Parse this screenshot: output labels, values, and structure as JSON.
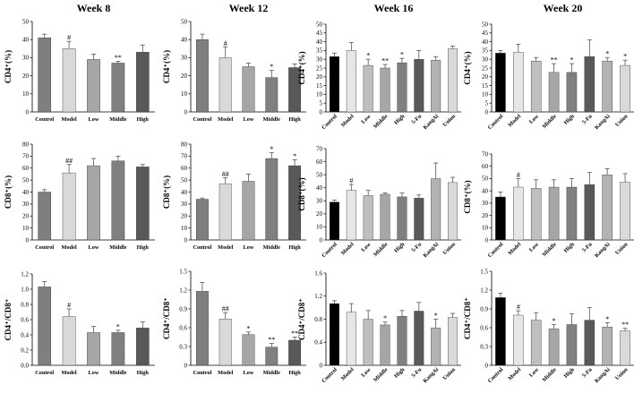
{
  "chart_data": [
    {
      "id": "w8-cd4",
      "type": "bar",
      "title": "Week 8",
      "ylabel": "CD4⁺(%)",
      "ylim": [
        0,
        50
      ],
      "yticks": [
        0,
        10,
        20,
        30,
        40,
        50
      ],
      "tick_labels": [
        "0",
        "10",
        "20",
        "30",
        "40",
        "50"
      ],
      "categories": [
        "Control",
        "Model",
        "Low",
        "Middle",
        "High"
      ],
      "values": [
        41,
        35,
        29,
        27,
        33
      ],
      "errors": [
        2,
        4,
        3,
        1,
        4
      ],
      "sig": [
        "",
        "#",
        "",
        "**",
        ""
      ],
      "colors": [
        "#7f7f7f",
        "#d9d9d9",
        "#a6a6a6",
        "#808080",
        "#595959"
      ]
    },
    {
      "id": "w12-cd4",
      "type": "bar",
      "title": "Week 12",
      "ylabel": "CD4⁺(%)",
      "ylim": [
        0,
        50
      ],
      "yticks": [
        0,
        10,
        20,
        30,
        40,
        50
      ],
      "tick_labels": [
        "0",
        "10",
        "20",
        "30",
        "40",
        "50"
      ],
      "categories": [
        "Control",
        "Model",
        "Low",
        "Middle",
        "High"
      ],
      "values": [
        40,
        30,
        25,
        19,
        24.5
      ],
      "errors": [
        3,
        6,
        2,
        4,
        2
      ],
      "sig": [
        "",
        "#",
        "",
        "*",
        ""
      ],
      "colors": [
        "#7f7f7f",
        "#d9d9d9",
        "#a6a6a6",
        "#808080",
        "#595959"
      ]
    },
    {
      "id": "w16-cd4",
      "type": "bar",
      "title": "Week 16",
      "ylabel": "CD4⁺(%)",
      "ylim": [
        0,
        50
      ],
      "yticks": [
        0,
        5,
        10,
        15,
        20,
        25,
        30,
        35,
        40,
        45,
        50
      ],
      "tick_labels": [
        "0",
        "5",
        "10",
        "15",
        "20",
        "25",
        "30",
        "35",
        "40",
        "45",
        "50"
      ],
      "categories": [
        "Control",
        "Model",
        "Low",
        "Middle",
        "High",
        "5-Fu",
        "KangAi",
        "Union"
      ],
      "values": [
        31.5,
        35,
        26.5,
        25,
        28,
        30,
        29.5,
        36
      ],
      "errors": [
        2,
        4.5,
        3.5,
        2,
        2.5,
        5,
        2,
        1.5
      ],
      "sig": [
        "",
        "",
        "*",
        "**",
        "*",
        "",
        "",
        ""
      ],
      "colors": [
        "#000000",
        "#e6e6e6",
        "#bfbfbf",
        "#a6a6a6",
        "#808080",
        "#595959",
        "#b3b3b3",
        "#d9d9d9"
      ]
    },
    {
      "id": "w20-cd4",
      "type": "bar",
      "title": "Week 20",
      "ylabel": "CD4⁺(%)",
      "ylim": [
        0,
        50
      ],
      "yticks": [
        0,
        5,
        10,
        15,
        20,
        25,
        30,
        35,
        40,
        45,
        50
      ],
      "tick_labels": [
        "0",
        "5",
        "10",
        "15",
        "20",
        "25",
        "30",
        "35",
        "40",
        "45",
        "50"
      ],
      "categories": [
        "Control",
        "Model",
        "Low",
        "Middle",
        "High",
        "5-Fu",
        "KangAi",
        "Union"
      ],
      "values": [
        33.5,
        34,
        29,
        22.5,
        22.5,
        31.5,
        29,
        26.5
      ],
      "errors": [
        1.5,
        4.5,
        2,
        5,
        5,
        9.5,
        2,
        3
      ],
      "sig": [
        "",
        "",
        "",
        "**",
        "*",
        "",
        "*",
        "*"
      ],
      "colors": [
        "#000000",
        "#e6e6e6",
        "#bfbfbf",
        "#a6a6a6",
        "#808080",
        "#595959",
        "#b3b3b3",
        "#d9d9d9"
      ]
    },
    {
      "id": "w8-cd8",
      "type": "bar",
      "title": "",
      "ylabel": "CD8⁺(%)",
      "ylim": [
        0,
        80
      ],
      "yticks": [
        0,
        10,
        20,
        30,
        40,
        50,
        60,
        70,
        80
      ],
      "tick_labels": [
        "0",
        "10",
        "20",
        "30",
        "40",
        "50",
        "60",
        "70",
        "80"
      ],
      "categories": [
        "Control",
        "Model",
        "Low",
        "Middle",
        "High"
      ],
      "values": [
        40,
        56,
        62,
        66,
        61
      ],
      "errors": [
        2,
        7,
        6,
        4,
        2
      ],
      "sig": [
        "",
        "##",
        "",
        "",
        ""
      ],
      "colors": [
        "#7f7f7f",
        "#d9d9d9",
        "#a6a6a6",
        "#808080",
        "#595959"
      ]
    },
    {
      "id": "w12-cd8",
      "type": "bar",
      "title": "",
      "ylabel": "CD8⁺(%)",
      "ylim": [
        0,
        80
      ],
      "yticks": [
        0,
        10,
        20,
        30,
        40,
        50,
        60,
        70,
        80
      ],
      "tick_labels": [
        "0",
        "10",
        "20",
        "30",
        "40",
        "50",
        "60",
        "70",
        "80"
      ],
      "categories": [
        "Control",
        "Model",
        "Low",
        "Middle",
        "High"
      ],
      "values": [
        34,
        47,
        49,
        68,
        62
      ],
      "errors": [
        1,
        5,
        6,
        5,
        5
      ],
      "sig": [
        "",
        "##",
        "",
        "*",
        "*"
      ],
      "colors": [
        "#7f7f7f",
        "#d9d9d9",
        "#a6a6a6",
        "#808080",
        "#595959"
      ]
    },
    {
      "id": "w16-cd8",
      "type": "bar",
      "title": "",
      "ylabel": "CD8⁺(%)",
      "ylim": [
        0,
        70
      ],
      "yticks": [
        0,
        10,
        20,
        30,
        40,
        50,
        60,
        70
      ],
      "tick_labels": [
        "0",
        "10",
        "20",
        "30",
        "40",
        "50",
        "60",
        "70"
      ],
      "categories": [
        "Control",
        "Model",
        "Low",
        "Middle",
        "High",
        "5-Fu",
        "KangAi",
        "Union"
      ],
      "values": [
        29,
        38,
        34,
        35,
        33,
        32,
        47,
        44
      ],
      "errors": [
        1.5,
        4.5,
        4,
        1,
        3,
        2.5,
        12,
        4
      ],
      "sig": [
        "",
        "#",
        "",
        "",
        "",
        "",
        "",
        ""
      ],
      "colors": [
        "#000000",
        "#e6e6e6",
        "#bfbfbf",
        "#a6a6a6",
        "#808080",
        "#595959",
        "#b3b3b3",
        "#d9d9d9"
      ]
    },
    {
      "id": "w20-cd8",
      "type": "bar",
      "title": "",
      "ylabel": "CD8⁺(%)",
      "ylim": [
        0,
        70
      ],
      "yticks": [
        0,
        10,
        20,
        30,
        40,
        50,
        60,
        70
      ],
      "tick_labels": [
        "0",
        "10",
        "20",
        "30",
        "40",
        "50",
        "60",
        "70"
      ],
      "categories": [
        "Control",
        "Model",
        "Low",
        "Middle",
        "High",
        "5-Fu",
        "KangAi",
        "Union"
      ],
      "values": [
        35,
        43,
        42,
        43,
        43,
        45,
        53,
        47
      ],
      "errors": [
        4,
        7,
        7,
        6,
        7,
        10,
        5,
        7
      ],
      "sig": [
        "",
        "#",
        "",
        "",
        "",
        "",
        "",
        ""
      ],
      "colors": [
        "#000000",
        "#e6e6e6",
        "#bfbfbf",
        "#a6a6a6",
        "#808080",
        "#595959",
        "#b3b3b3",
        "#d9d9d9"
      ]
    },
    {
      "id": "w8-ratio",
      "type": "bar",
      "title": "",
      "ylabel": "CD4⁺/CD8⁺",
      "ylim": [
        0,
        1.2
      ],
      "yticks": [
        0,
        0.2,
        0.4,
        0.6,
        0.8,
        1.0,
        1.2
      ],
      "tick_labels": [
        "0.0",
        "0.2",
        "0.4",
        "0.6",
        "0.8",
        "1.0",
        "1.2"
      ],
      "categories": [
        "Control",
        "Model",
        "Low",
        "Middle",
        "High"
      ],
      "values": [
        1.03,
        0.64,
        0.43,
        0.43,
        0.49
      ],
      "errors": [
        0.07,
        0.1,
        0.08,
        0.03,
        0.08
      ],
      "sig": [
        "",
        "#",
        "",
        "*",
        ""
      ],
      "colors": [
        "#7f7f7f",
        "#d9d9d9",
        "#a6a6a6",
        "#808080",
        "#595959"
      ]
    },
    {
      "id": "w12-ratio",
      "type": "bar",
      "title": "",
      "ylabel": "CD4⁺/CD8⁺",
      "ylim": [
        0,
        1.5
      ],
      "yticks": [
        0,
        0.3,
        0.6,
        0.9,
        1.2,
        1.5
      ],
      "tick_labels": [
        "0",
        "0.3",
        "0.6",
        "0.9",
        "1.2",
        "1.5"
      ],
      "categories": [
        "Control",
        "Model",
        "Low",
        "Middle",
        "High"
      ],
      "values": [
        1.18,
        0.74,
        0.49,
        0.29,
        0.4
      ],
      "errors": [
        0.14,
        0.1,
        0.04,
        0.06,
        0.05
      ],
      "sig": [
        "",
        "##",
        "*",
        "**",
        "**"
      ],
      "colors": [
        "#7f7f7f",
        "#d9d9d9",
        "#a6a6a6",
        "#808080",
        "#595959"
      ]
    },
    {
      "id": "w16-ratio",
      "type": "bar",
      "title": "",
      "ylabel": "CD4⁺/CD8⁺",
      "ylim": [
        0,
        1.6
      ],
      "yticks": [
        0,
        0.4,
        0.8,
        1.2,
        1.6
      ],
      "tick_labels": [
        "0",
        "0.4",
        "0.8",
        "1.2",
        "1.6"
      ],
      "categories": [
        "Control",
        "Model",
        "Low",
        "Middle",
        "High",
        "5-Fu",
        "KangAi",
        "Union"
      ],
      "values": [
        1.07,
        0.92,
        0.8,
        0.7,
        0.85,
        0.94,
        0.65,
        0.83
      ],
      "errors": [
        0.05,
        0.15,
        0.15,
        0.05,
        0.1,
        0.15,
        0.15,
        0.07
      ],
      "sig": [
        "",
        "",
        "",
        "*",
        "",
        "",
        "*",
        ""
      ],
      "colors": [
        "#000000",
        "#e6e6e6",
        "#bfbfbf",
        "#a6a6a6",
        "#808080",
        "#595959",
        "#b3b3b3",
        "#d9d9d9"
      ]
    },
    {
      "id": "w20-ratio",
      "type": "bar",
      "title": "",
      "ylabel": "CD4⁺/CD8⁺",
      "ylim": [
        0,
        1.5
      ],
      "yticks": [
        0,
        0.3,
        0.6,
        0.9,
        1.2,
        1.5
      ],
      "tick_labels": [
        "0",
        "0.3",
        "0.6",
        "0.9",
        "1.2",
        "1.5"
      ],
      "categories": [
        "Control",
        "Model",
        "Low",
        "Middle",
        "High",
        "5-Fu",
        "KangAi",
        "Union"
      ],
      "values": [
        1.08,
        0.8,
        0.72,
        0.58,
        0.65,
        0.72,
        0.61,
        0.55
      ],
      "errors": [
        0.07,
        0.07,
        0.12,
        0.07,
        0.17,
        0.2,
        0.07,
        0.04
      ],
      "sig": [
        "",
        "#",
        "",
        "*",
        "",
        "",
        "*",
        "**"
      ],
      "colors": [
        "#000000",
        "#e6e6e6",
        "#bfbfbf",
        "#a6a6a6",
        "#808080",
        "#595959",
        "#b3b3b3",
        "#d9d9d9"
      ]
    }
  ]
}
